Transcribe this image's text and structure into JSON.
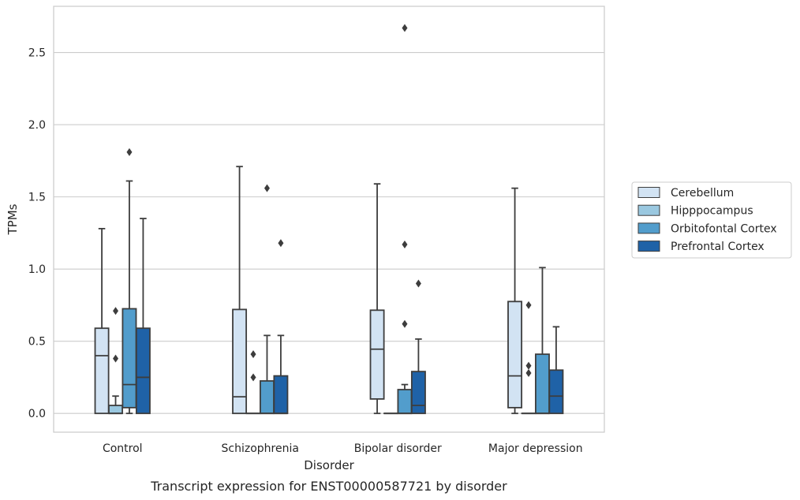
{
  "chart_data": {
    "type": "box",
    "title": "",
    "caption": "Transcript expression for ENST00000587721 by disorder",
    "xlabel": "Disorder",
    "ylabel": "TPMs",
    "ylim": [
      -0.13,
      2.82
    ],
    "yticks": [
      "0.0",
      "0.5",
      "1.0",
      "1.5",
      "2.0",
      "2.5"
    ],
    "yticks_values": [
      0,
      0.5,
      1.0,
      1.5,
      2.0,
      2.5
    ],
    "grid": "horizontal",
    "legend_position": "right",
    "categories": [
      "Control",
      "Schizophrenia",
      "Bipolar disorder",
      "Major depression"
    ],
    "series": [
      {
        "name": "Cerebellum",
        "color": "#d2e3f3",
        "boxes": [
          {
            "whislo": 0,
            "q1": 0,
            "med": 0.4,
            "q3": 0.59,
            "whishi": 1.28,
            "fliers": []
          },
          {
            "whislo": 0,
            "q1": 0,
            "med": 0.115,
            "q3": 0.72,
            "whishi": 1.71,
            "fliers": []
          },
          {
            "whislo": 0,
            "q1": 0.1,
            "med": 0.445,
            "q3": 0.715,
            "whishi": 1.59,
            "fliers": []
          },
          {
            "whislo": 0,
            "q1": 0.04,
            "med": 0.26,
            "q3": 0.775,
            "whishi": 1.56,
            "fliers": []
          }
        ]
      },
      {
        "name": "Hipppocampus",
        "color": "#9ac8e0",
        "boxes": [
          {
            "whislo": 0,
            "q1": 0,
            "med": 0,
            "q3": 0.055,
            "whishi": 0.12,
            "fliers": [
              0.38,
              0.71
            ]
          },
          {
            "whislo": 0,
            "q1": 0,
            "med": 0,
            "q3": 0,
            "whishi": 0,
            "fliers": [
              0.25,
              0.41
            ]
          },
          {
            "whislo": 0,
            "q1": 0,
            "med": 0,
            "q3": 0,
            "whishi": 0,
            "fliers": []
          },
          {
            "whislo": 0,
            "q1": 0,
            "med": 0,
            "q3": 0,
            "whishi": 0,
            "fliers": [
              0.28,
              0.33,
              0.75
            ]
          }
        ]
      },
      {
        "name": "Orbitofontal Cortex",
        "color": "#529dcc",
        "boxes": [
          {
            "whislo": 0,
            "q1": 0.04,
            "med": 0.2,
            "q3": 0.725,
            "whishi": 1.61,
            "fliers": [
              1.81
            ]
          },
          {
            "whislo": 0,
            "q1": 0,
            "med": 0,
            "q3": 0.225,
            "whishi": 0.54,
            "fliers": [
              1.56
            ]
          },
          {
            "whislo": 0,
            "q1": 0,
            "med": 0,
            "q3": 0.165,
            "whishi": 0.2,
            "fliers": [
              0.62,
              1.17,
              2.67
            ]
          },
          {
            "whislo": 0,
            "q1": 0,
            "med": 0,
            "q3": 0.41,
            "whishi": 1.01,
            "fliers": []
          }
        ]
      },
      {
        "name": "Prefrontal Cortex",
        "color": "#1f62a7",
        "boxes": [
          {
            "whislo": 0,
            "q1": 0,
            "med": 0.25,
            "q3": 0.59,
            "whishi": 1.35,
            "fliers": []
          },
          {
            "whislo": 0,
            "q1": 0,
            "med": 0,
            "q3": 0.26,
            "whishi": 0.54,
            "fliers": [
              1.18
            ]
          },
          {
            "whislo": 0,
            "q1": 0,
            "med": 0.055,
            "q3": 0.29,
            "whishi": 0.515,
            "fliers": [
              0.9
            ]
          },
          {
            "whislo": 0,
            "q1": 0,
            "med": 0.12,
            "q3": 0.3,
            "whishi": 0.6,
            "fliers": []
          }
        ]
      }
    ]
  }
}
